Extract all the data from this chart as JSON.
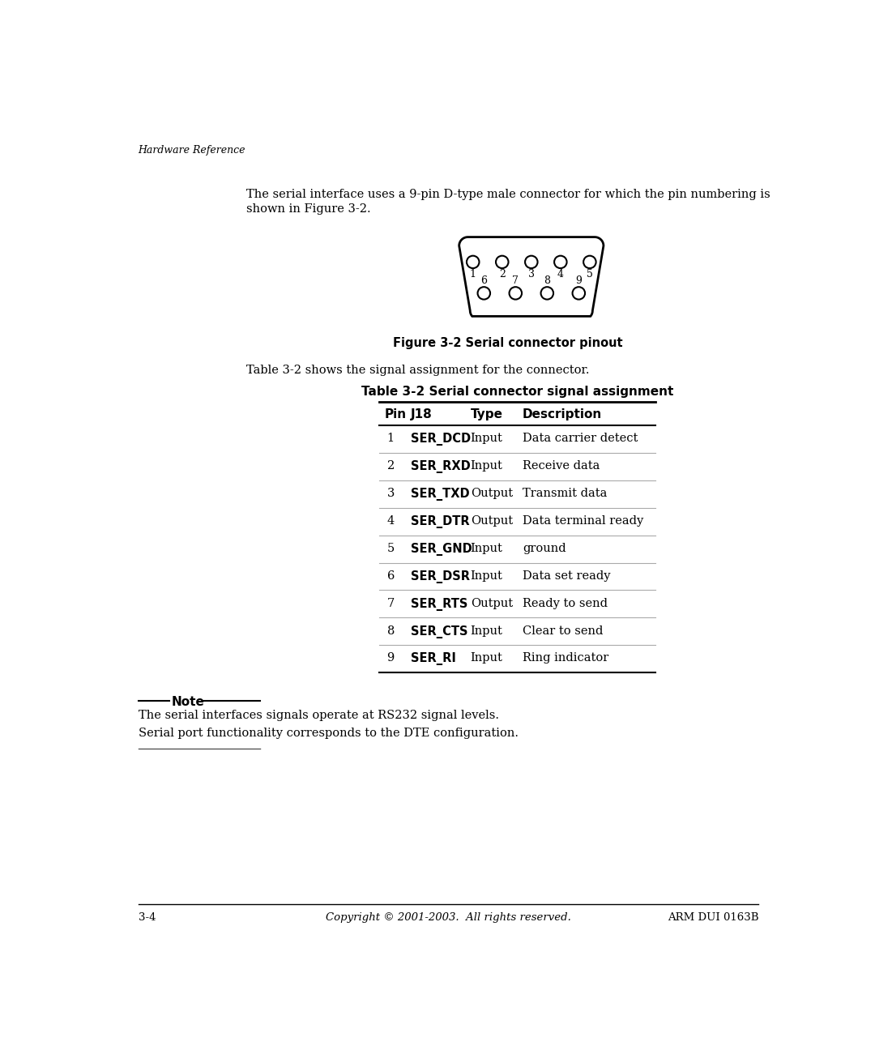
{
  "bg_color": "#ffffff",
  "header_italic": "Hardware Reference",
  "intro_line1": "The serial interface uses a 9-pin D-type male connector for which the pin numbering is",
  "intro_line2": "shown in Figure 3-2.",
  "figure_caption": "Figure 3-2 Serial connector pinout",
  "table_intro": "Table 3-2 shows the signal assignment for the connector.",
  "table_title": "Table 3-2 Serial connector signal assignment",
  "table_headers": [
    "Pin",
    "J18",
    "Type",
    "Description"
  ],
  "table_rows": [
    [
      "1",
      "SER_DCD",
      "Input",
      "Data carrier detect"
    ],
    [
      "2",
      "SER_RXD",
      "Input",
      "Receive data"
    ],
    [
      "3",
      "SER_TXD",
      "Output",
      "Transmit data"
    ],
    [
      "4",
      "SER_DTR",
      "Output",
      "Data terminal ready"
    ],
    [
      "5",
      "SER_GND",
      "Input",
      "ground"
    ],
    [
      "6",
      "SER_DSR",
      "Input",
      "Data set ready"
    ],
    [
      "7",
      "SER_RTS",
      "Output",
      "Ready to send"
    ],
    [
      "8",
      "SER_CTS",
      "Input",
      "Clear to send"
    ],
    [
      "9",
      "SER_RI",
      "Input",
      "Ring indicator"
    ]
  ],
  "note_label": "Note",
  "note_lines": [
    "The serial interfaces signals operate at RS232 signal levels.",
    "Serial port functionality corresponds to the DTE configuration."
  ],
  "footer_left": "3-4",
  "footer_center": "Copyright © 2001-2003.  All rights reserved.",
  "footer_right": "ARM DUI 0163B",
  "connector_top_pins": [
    "1",
    "2",
    "3",
    "4",
    "5"
  ],
  "connector_bot_pins": [
    "6",
    "7",
    "8",
    "9"
  ]
}
